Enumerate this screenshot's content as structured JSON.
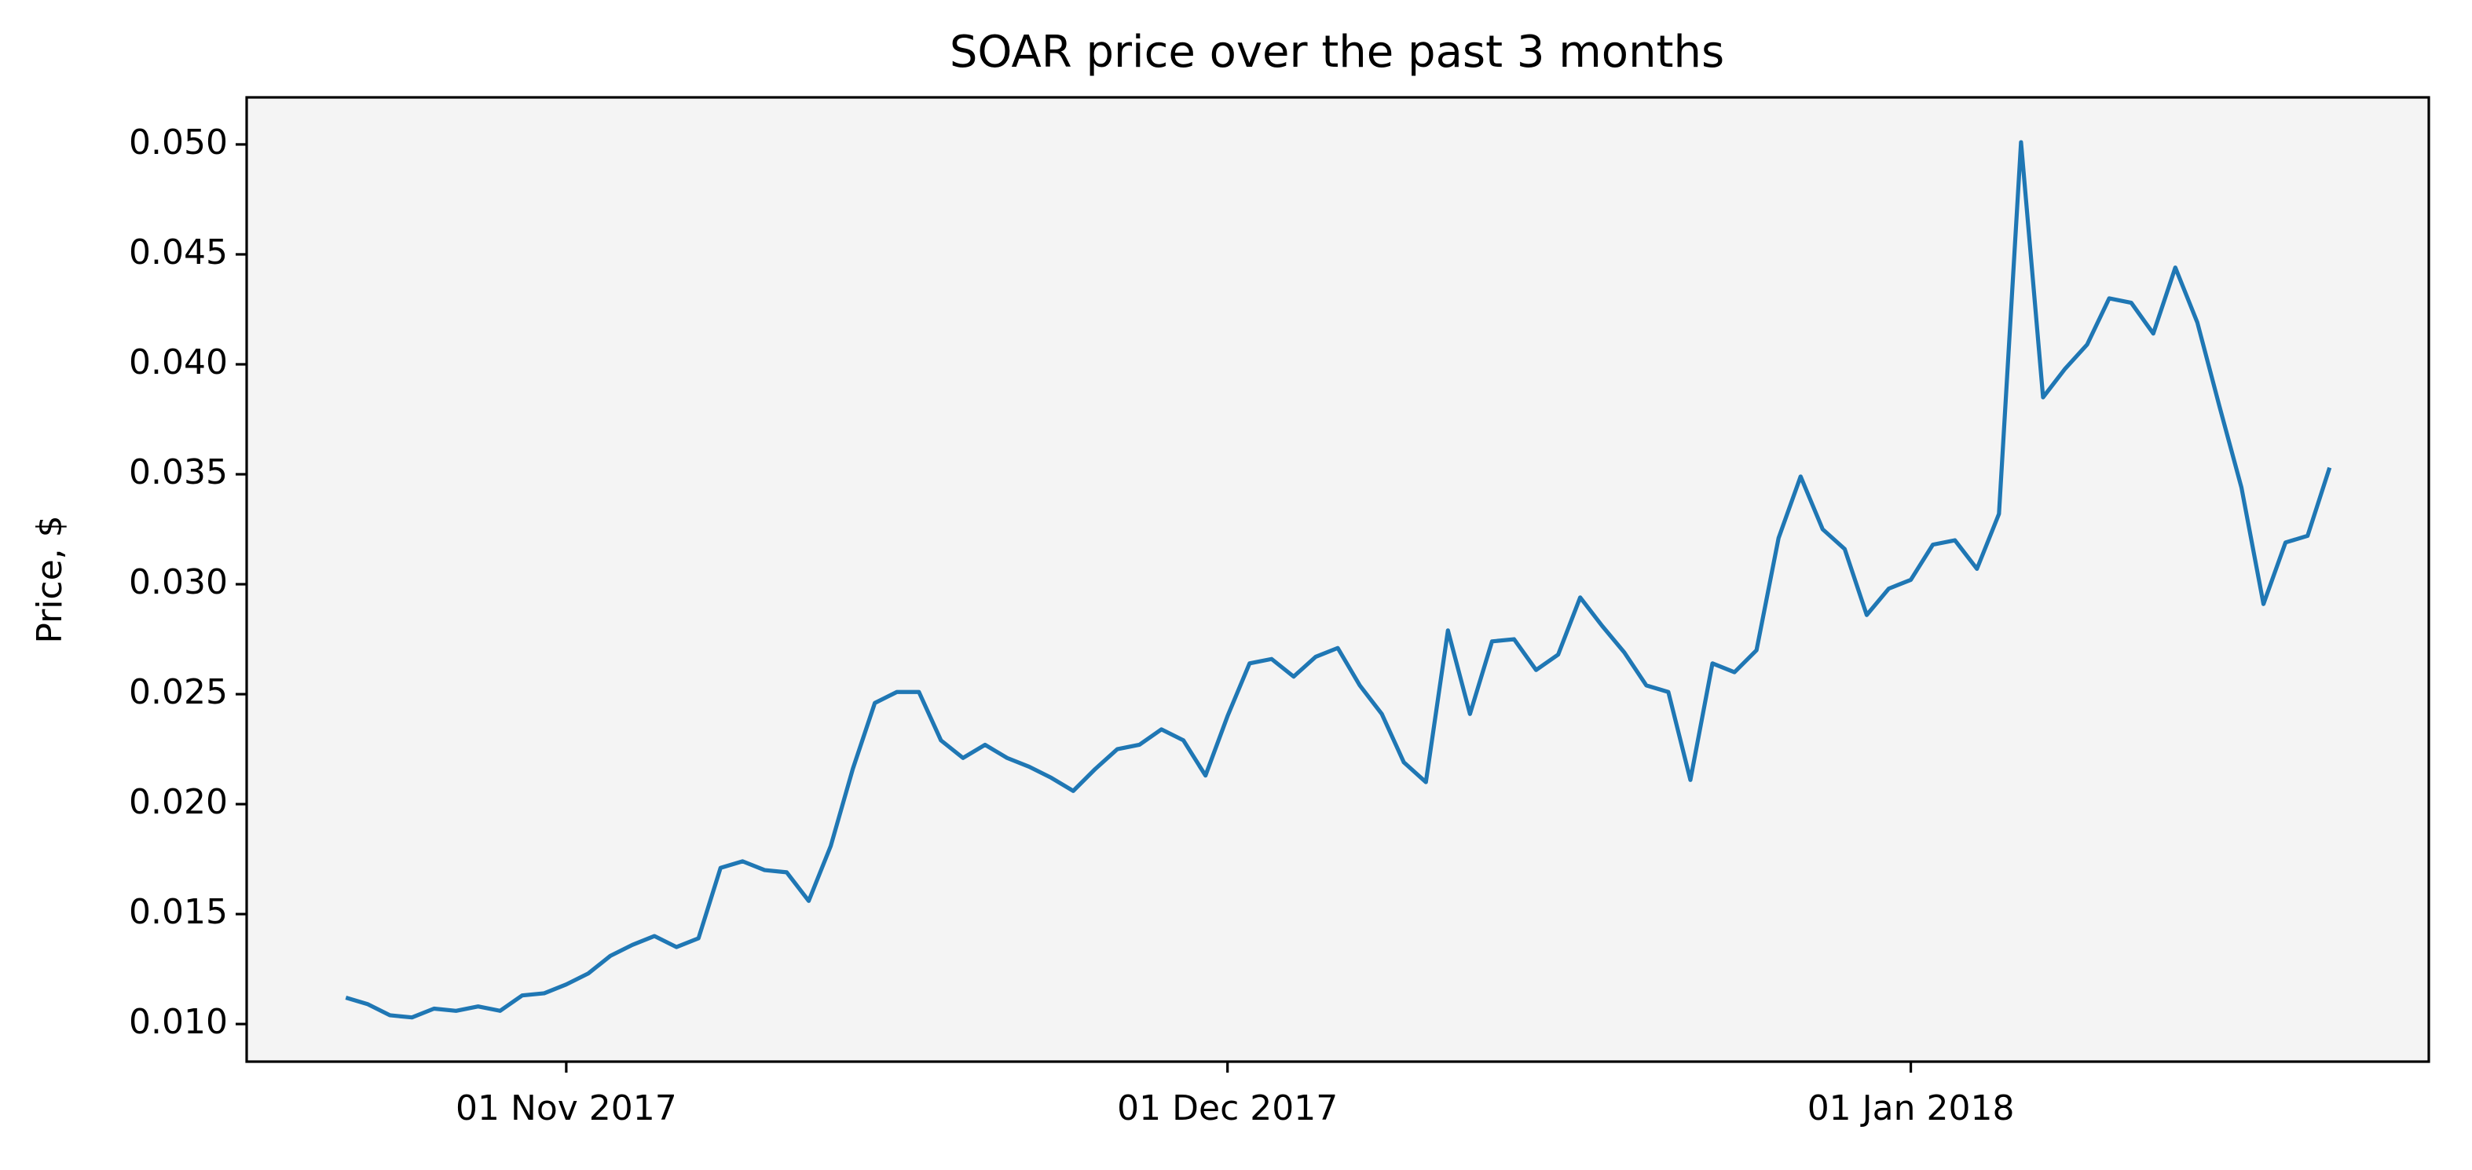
{
  "chart_data": {
    "type": "line",
    "title": "SOAR price over the past 3 months",
    "ylabel": "Price, $",
    "x": [
      "2017-10-22",
      "2017-10-23",
      "2017-10-24",
      "2017-10-25",
      "2017-10-26",
      "2017-10-27",
      "2017-10-28",
      "2017-10-29",
      "2017-10-30",
      "2017-10-31",
      "2017-11-01",
      "2017-11-02",
      "2017-11-03",
      "2017-11-04",
      "2017-11-05",
      "2017-11-06",
      "2017-11-07",
      "2017-11-08",
      "2017-11-09",
      "2017-11-10",
      "2017-11-11",
      "2017-11-12",
      "2017-11-13",
      "2017-11-14",
      "2017-11-15",
      "2017-11-16",
      "2017-11-17",
      "2017-11-18",
      "2017-11-19",
      "2017-11-20",
      "2017-11-21",
      "2017-11-22",
      "2017-11-23",
      "2017-11-24",
      "2017-11-25",
      "2017-11-26",
      "2017-11-27",
      "2017-11-28",
      "2017-11-29",
      "2017-11-30",
      "2017-12-01",
      "2017-12-02",
      "2017-12-03",
      "2017-12-04",
      "2017-12-05",
      "2017-12-06",
      "2017-12-07",
      "2017-12-08",
      "2017-12-09",
      "2017-12-10",
      "2017-12-11",
      "2017-12-12",
      "2017-12-13",
      "2017-12-14",
      "2017-12-15",
      "2017-12-16",
      "2017-12-17",
      "2017-12-18",
      "2017-12-19",
      "2017-12-20",
      "2017-12-21",
      "2017-12-22",
      "2017-12-23",
      "2017-12-24",
      "2017-12-25",
      "2017-12-26",
      "2017-12-27",
      "2017-12-28",
      "2017-12-29",
      "2017-12-30",
      "2017-12-31",
      "2018-01-01",
      "2018-01-02",
      "2018-01-03",
      "2018-01-04",
      "2018-01-05",
      "2018-01-06",
      "2018-01-07",
      "2018-01-08",
      "2018-01-09",
      "2018-01-10",
      "2018-01-11",
      "2018-01-12",
      "2018-01-13",
      "2018-01-14",
      "2018-01-15",
      "2018-01-16",
      "2018-01-17",
      "2018-01-18",
      "2018-01-19",
      "2018-01-20"
    ],
    "series": [
      {
        "color": "#1f77b4",
        "values": [
          0.0112,
          0.0109,
          0.0104,
          0.0103,
          0.0107,
          0.0106,
          0.0108,
          0.0106,
          0.0113,
          0.0114,
          0.0118,
          0.0123,
          0.0131,
          0.0136,
          0.014,
          0.0135,
          0.0139,
          0.0171,
          0.0174,
          0.017,
          0.0169,
          0.0156,
          0.0181,
          0.0216,
          0.0246,
          0.0251,
          0.0251,
          0.0229,
          0.0221,
          0.0227,
          0.0221,
          0.0217,
          0.0212,
          0.0206,
          0.0216,
          0.0225,
          0.0227,
          0.0234,
          0.0229,
          0.0213,
          0.024,
          0.0264,
          0.0266,
          0.0258,
          0.0267,
          0.0271,
          0.0254,
          0.0241,
          0.0219,
          0.021,
          0.0279,
          0.0241,
          0.0274,
          0.0275,
          0.0261,
          0.0268,
          0.0294,
          0.0281,
          0.0269,
          0.0254,
          0.0251,
          0.0211,
          0.0264,
          0.026,
          0.027,
          0.0321,
          0.0349,
          0.0325,
          0.0316,
          0.0286,
          0.0298,
          0.0302,
          0.0318,
          0.032,
          0.0307,
          0.0332,
          0.0501,
          0.0385,
          0.0398,
          0.0409,
          0.043,
          0.0428,
          0.0414,
          0.0444,
          0.0419,
          0.0381,
          0.0344,
          0.0291,
          0.0319,
          0.0322,
          0.0353
        ]
      }
    ],
    "xlim": [
      "2017-10-17T12:00:00Z",
      "2018-01-24T12:00:00Z"
    ],
    "xticks": [
      {
        "value": "2017-11-01",
        "label": "01 Nov 2017"
      },
      {
        "value": "2017-12-01",
        "label": "01 Dec 2017"
      },
      {
        "value": "2018-01-01",
        "label": "01 Jan 2018"
      }
    ],
    "ylim": [
      0.00829,
      0.05214
    ],
    "yticks": [
      {
        "value": 0.01,
        "label": "0.010"
      },
      {
        "value": 0.015,
        "label": "0.015"
      },
      {
        "value": 0.02,
        "label": "0.020"
      },
      {
        "value": 0.025,
        "label": "0.025"
      },
      {
        "value": 0.03,
        "label": "0.030"
      },
      {
        "value": 0.035,
        "label": "0.035"
      },
      {
        "value": 0.04,
        "label": "0.040"
      },
      {
        "value": 0.045,
        "label": "0.045"
      },
      {
        "value": 0.05,
        "label": "0.050"
      }
    ],
    "grid": false
  }
}
